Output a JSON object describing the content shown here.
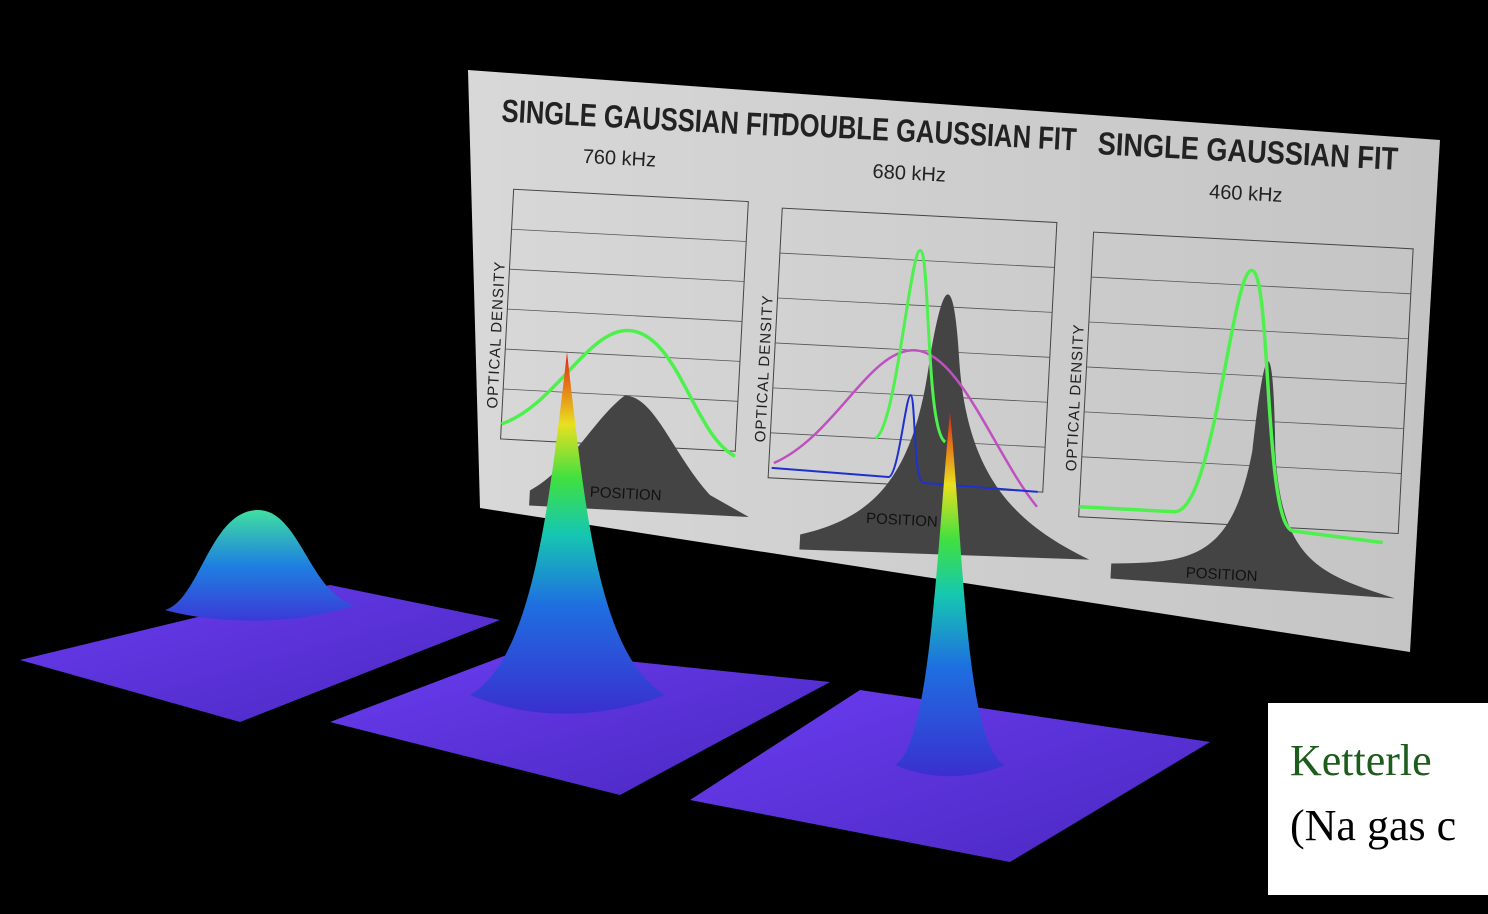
{
  "panels": [
    {
      "title": "SINGLE GAUSSIAN FIT",
      "frequency": "760 kHz",
      "y_label": "OPTICAL DENSITY",
      "x_label": "POSITION"
    },
    {
      "title": "DOUBLE GAUSSIAN FIT",
      "frequency": "680 kHz",
      "y_label": "OPTICAL DENSITY",
      "x_label": "POSITION"
    },
    {
      "title": "SINGLE GAUSSIAN FIT",
      "frequency": "460 kHz",
      "y_label": "OPTICAL DENSITY",
      "x_label": "POSITION"
    }
  ],
  "caption": {
    "lines": [
      "Ketterle",
      "(Na gas c"
    ]
  }
}
